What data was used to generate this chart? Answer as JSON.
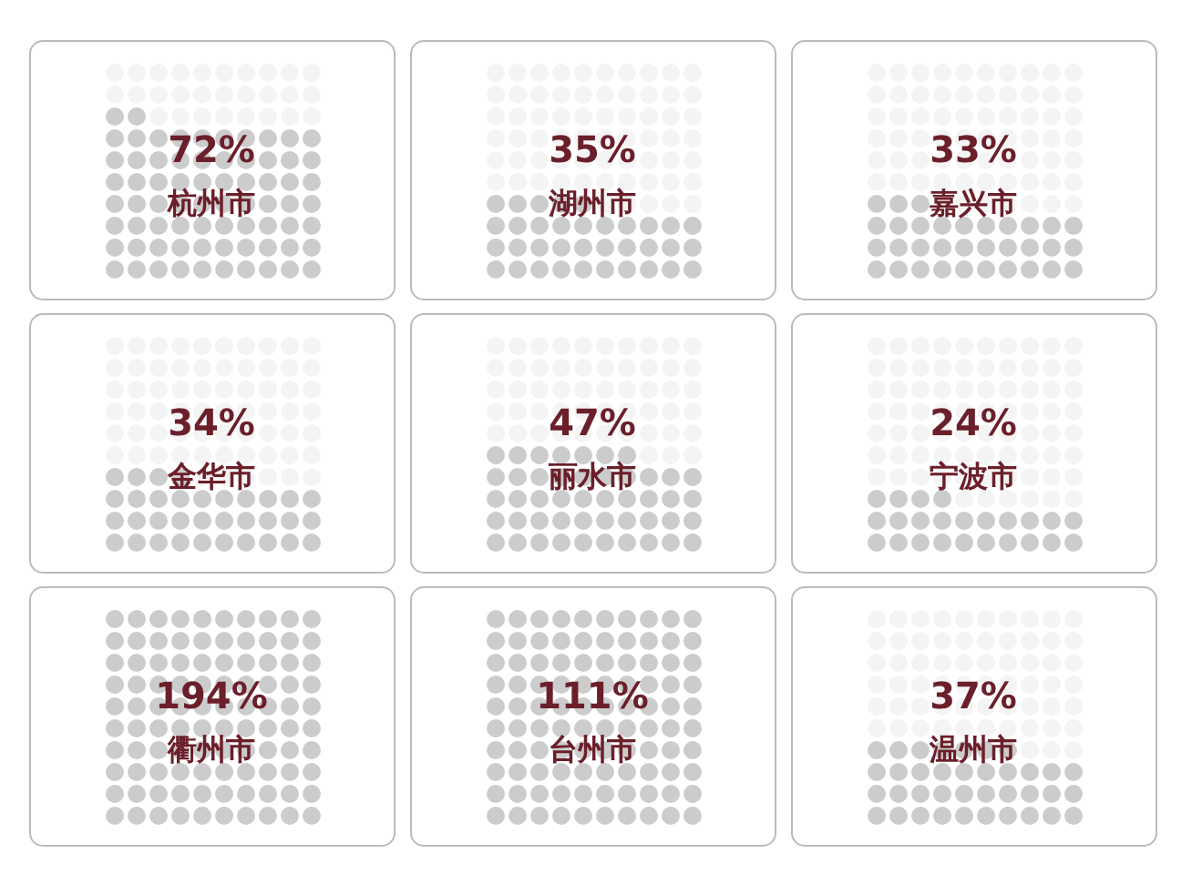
{
  "chart_data": [
    {
      "type": "other",
      "categories": [
        "杭州市"
      ],
      "values": [
        72
      ],
      "value_labels": [
        "72%"
      ],
      "color": "#cccccc"
    },
    {
      "type": "other",
      "categories": [
        "湖州市"
      ],
      "values": [
        35
      ],
      "value_labels": [
        "35%"
      ],
      "color": "#cccccc"
    },
    {
      "type": "other",
      "categories": [
        "嘉兴市"
      ],
      "values": [
        33
      ],
      "value_labels": [
        "33%"
      ],
      "color": "#cccccc"
    },
    {
      "type": "other",
      "categories": [
        "金华市"
      ],
      "values": [
        34
      ],
      "value_labels": [
        "34%"
      ],
      "color": "#cccccc"
    },
    {
      "type": "other",
      "categories": [
        "丽水市"
      ],
      "values": [
        47
      ],
      "value_labels": [
        "47%"
      ],
      "color": "#cccccc"
    },
    {
      "type": "other",
      "categories": [
        "宁波市"
      ],
      "values": [
        24
      ],
      "value_labels": [
        "24%"
      ],
      "color": "#cccccc"
    },
    {
      "type": "other",
      "categories": [
        "衢州市"
      ],
      "values": [
        194
      ],
      "value_labels": [
        "194%"
      ],
      "color": "#cccccc"
    },
    {
      "type": "other",
      "categories": [
        "台州市"
      ],
      "values": [
        111
      ],
      "value_labels": [
        "111%"
      ],
      "color": "#cccccc"
    },
    {
      "type": "other",
      "categories": [
        "温州市"
      ],
      "values": [
        37
      ],
      "value_labels": [
        "37%"
      ],
      "color": "#cccccc"
    }
  ]
}
